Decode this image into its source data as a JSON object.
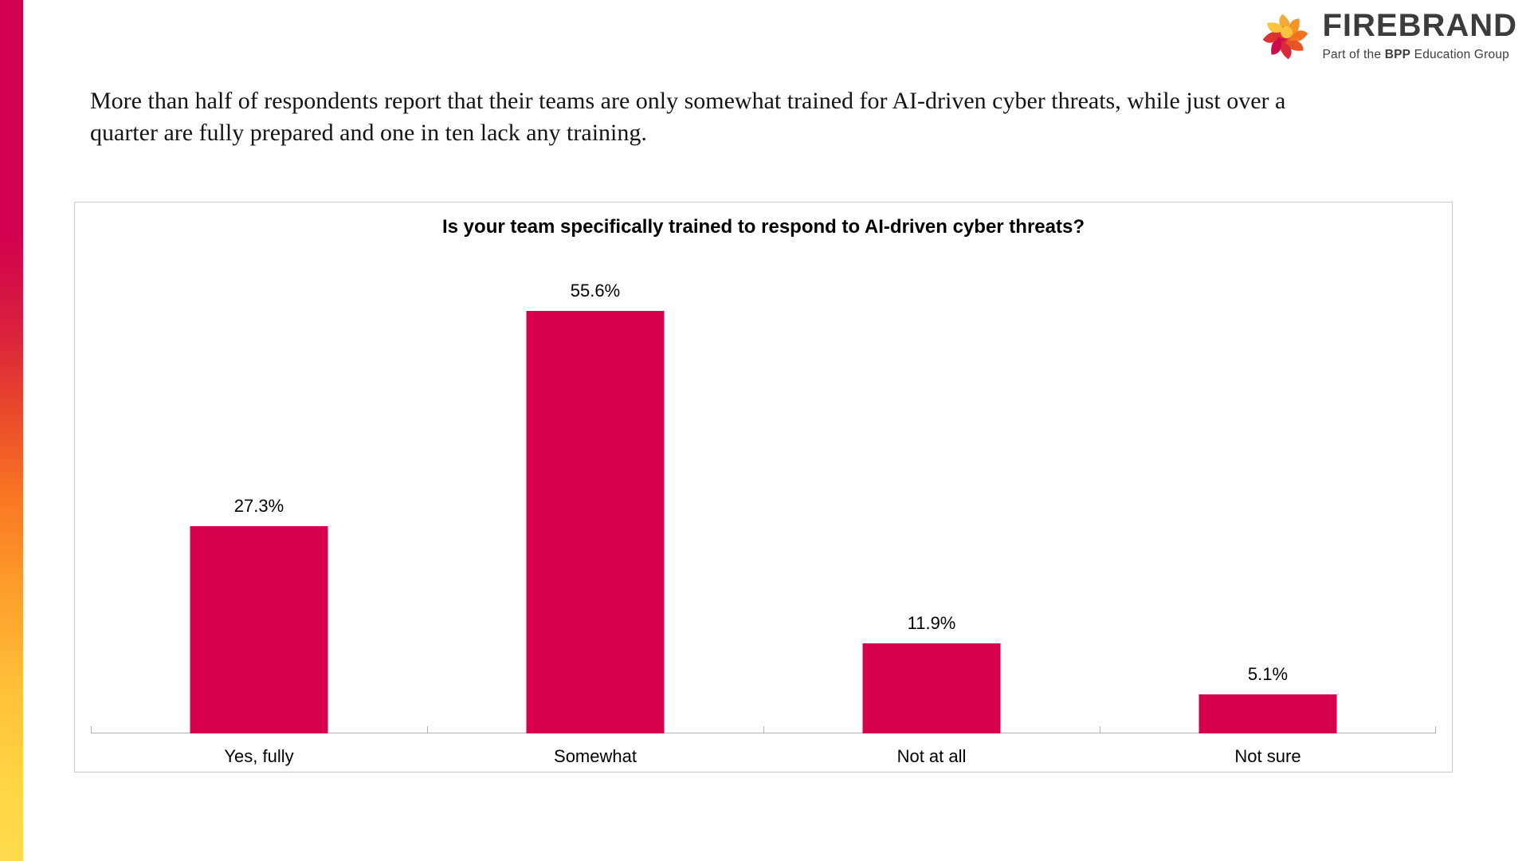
{
  "brand": {
    "name": "FIREBRAND",
    "tagline_prefix": "Part of the ",
    "tagline_bold": "BPP",
    "tagline_suffix": " Education Group",
    "icon": "firebrand-swirl-icon",
    "wordmark_color": "#3c3c3c",
    "petal_colors": [
      "#f2a93c",
      "#f59325",
      "#f07322",
      "#e85426",
      "#d62b38",
      "#cf0a4e",
      "#dc3330",
      "#f9c33f"
    ]
  },
  "headline": "More than half of respondents report that their teams are only somewhat trained for AI-driven cyber threats, while just over a quarter are fully prepared and one in ten lack any training.",
  "accent_gradient": [
    "#d20050",
    "#ea4a2b",
    "#fd9c2a",
    "#ffdb4d"
  ],
  "chart_data": {
    "type": "bar",
    "title": "Is your team specifically trained to respond to AI-driven cyber threats?",
    "categories": [
      "Yes, fully",
      "Somewhat",
      "Not at all",
      "Not sure"
    ],
    "values": [
      27.3,
      55.6,
      11.9,
      5.1
    ],
    "value_labels": [
      "27.3%",
      "55.6%",
      "11.9%",
      "5.1%"
    ],
    "bar_color": "#d6004f",
    "xlabel": "",
    "ylabel": "",
    "ylim": [
      0,
      60
    ],
    "grid": false,
    "legend": "none"
  }
}
